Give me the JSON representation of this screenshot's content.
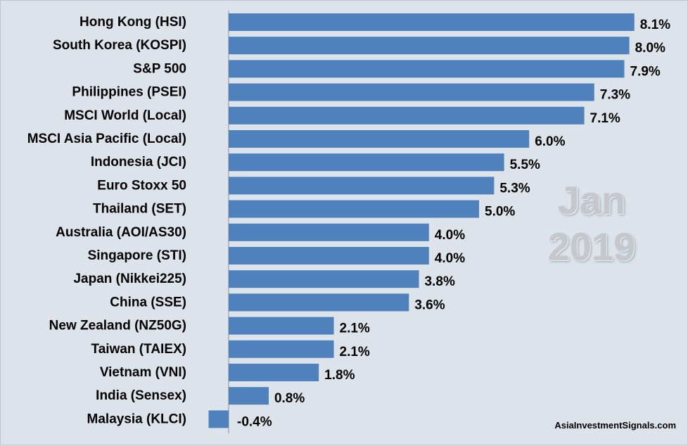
{
  "chart_data": {
    "type": "bar",
    "orientation": "horizontal",
    "categories": [
      "Hong Kong (HSI)",
      "South Korea (KOSPI)",
      "S&P 500",
      "Philippines (PSEI)",
      "MSCI World (Local)",
      "MSCI Asia Pacific (Local)",
      "Indonesia (JCI)",
      "Euro Stoxx 50",
      "Thailand (SET)",
      "Australia (AOI/AS30)",
      "Singapore (STI)",
      "Japan (Nikkei225)",
      "China (SSE)",
      "New Zealand (NZ50G)",
      "Taiwan (TAIEX)",
      "Vietnam (VNI)",
      "India (Sensex)",
      "Malaysia (KLCI)"
    ],
    "values": [
      8.1,
      8.0,
      7.9,
      7.3,
      7.1,
      6.0,
      5.5,
      5.3,
      5.0,
      4.0,
      4.0,
      3.8,
      3.6,
      2.1,
      2.1,
      1.8,
      0.8,
      -0.4
    ],
    "value_labels": [
      "8.1%",
      "8.0%",
      "7.9%",
      "7.3%",
      "7.1%",
      "6.0%",
      "5.5%",
      "5.3%",
      "5.0%",
      "4.0%",
      "4.0%",
      "3.8%",
      "3.6%",
      "2.1%",
      "2.1%",
      "1.8%",
      "0.8%",
      "-0.4%"
    ],
    "bar_color": "#4f81bd",
    "background_color": "#dde3ea",
    "xlim": [
      -0.4,
      8.1
    ],
    "grid": false,
    "legend": "none"
  },
  "watermark": {
    "month": "Jan",
    "year": "2019"
  },
  "source": "AsiaInvestmentSignals.com"
}
